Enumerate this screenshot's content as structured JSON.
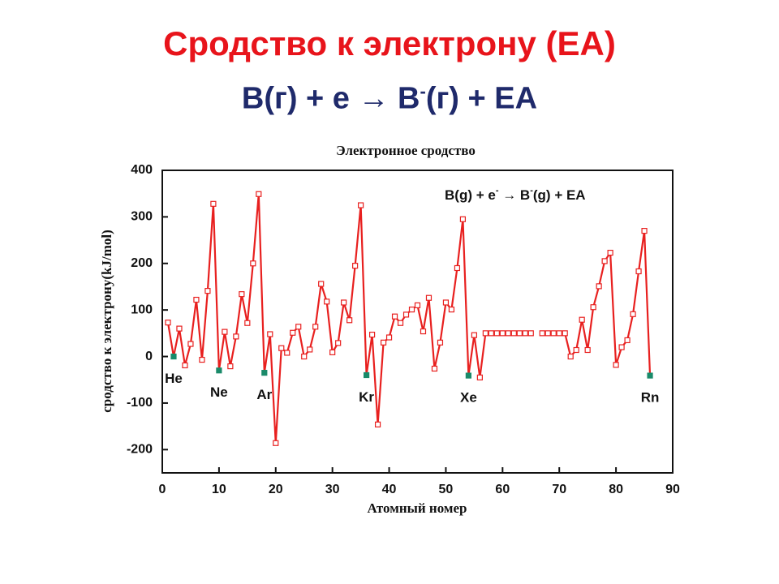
{
  "slide": {
    "title": "Сродство к электрону (EA)",
    "subtitle_parts": [
      "B(г) + e ",
      "→",
      " B",
      "-",
      "(г) + EA"
    ]
  },
  "chart_data": {
    "type": "line",
    "title": "Электронное сродство",
    "x_label": "Атомный номер",
    "y_label": "сродство к электрону(kJ/mol)",
    "equation": [
      "B(g) + e",
      "-",
      " → B",
      "-",
      "(g) + EA"
    ],
    "x": [
      1,
      2,
      3,
      4,
      5,
      6,
      7,
      8,
      9,
      10,
      11,
      12,
      13,
      14,
      15,
      16,
      17,
      18,
      19,
      20,
      21,
      22,
      23,
      24,
      25,
      26,
      27,
      28,
      29,
      30,
      31,
      32,
      33,
      34,
      35,
      36,
      37,
      38,
      39,
      40,
      41,
      42,
      43,
      44,
      45,
      46,
      47,
      48,
      49,
      50,
      51,
      52,
      53,
      54,
      55,
      56,
      57,
      58,
      59,
      60,
      61,
      62,
      63,
      64,
      65,
      66,
      67,
      68,
      69,
      70,
      71,
      72,
      73,
      74,
      75,
      76,
      77,
      78,
      79,
      80,
      81,
      82,
      83,
      84,
      85,
      86
    ],
    "values": [
      73,
      0,
      60,
      -19,
      27,
      122,
      -7,
      141,
      328,
      -30,
      53,
      -21,
      43,
      134,
      72,
      200,
      349,
      -35,
      48,
      -186,
      18,
      8,
      51,
      64,
      0,
      15,
      64,
      156,
      118,
      9,
      29,
      116,
      78,
      195,
      325,
      -40,
      47,
      -146,
      30,
      41,
      86,
      72,
      90,
      101,
      110,
      54,
      126,
      -26,
      30,
      116,
      101,
      190,
      295,
      -41,
      46,
      -45,
      50,
      50,
      50,
      50,
      50,
      50,
      50,
      50,
      50,
      null,
      50,
      50,
      50,
      50,
      50,
      0,
      14,
      79,
      14,
      106,
      151,
      205,
      223,
      -18,
      20,
      35,
      91,
      183,
      270,
      -41
    ],
    "color": "#e8201f",
    "marker_fill": "#ffffff",
    "highlight_color": "#1a8a6a",
    "annotations": [
      {
        "text": "He",
        "x": 2
      },
      {
        "text": "Ne",
        "x": 10
      },
      {
        "text": "Ar",
        "x": 18
      },
      {
        "text": "Kr",
        "x": 36
      },
      {
        "text": "Xe",
        "x": 54
      },
      {
        "text": "Rn",
        "x": 86
      }
    ],
    "xlim": [
      0,
      90
    ],
    "xticks": [
      0,
      10,
      20,
      30,
      40,
      50,
      60,
      70,
      80,
      90
    ],
    "ylim": [
      -250,
      400
    ],
    "yticks": [
      -200,
      -100,
      0,
      100,
      200,
      300,
      400
    ]
  }
}
